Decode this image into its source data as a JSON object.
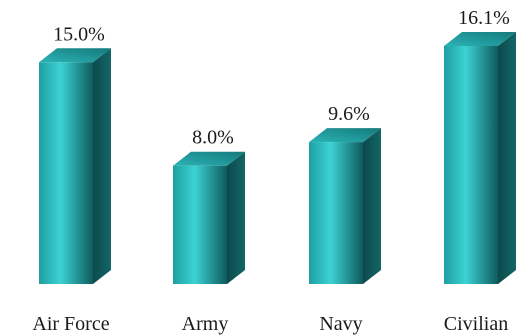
{
  "chart_data": {
    "type": "bar",
    "categories": [
      "Air Force",
      "Army",
      "Navy",
      "Civilian"
    ],
    "values": [
      15.0,
      8.0,
      9.6,
      16.1
    ],
    "value_labels": [
      "15.0%",
      "8.0%",
      "9.6%",
      "16.1%"
    ],
    "title": "",
    "xlabel": "",
    "ylabel": "",
    "ylim": [
      0,
      16.1
    ],
    "grid": false,
    "legend": "none",
    "style": "3d-column",
    "colors": {
      "front_light": "#3cd2d4",
      "front_mid": "#22a9ab",
      "front_dark": "#0b4f51",
      "side": "#0f5658",
      "top": "#1f8f91"
    }
  }
}
